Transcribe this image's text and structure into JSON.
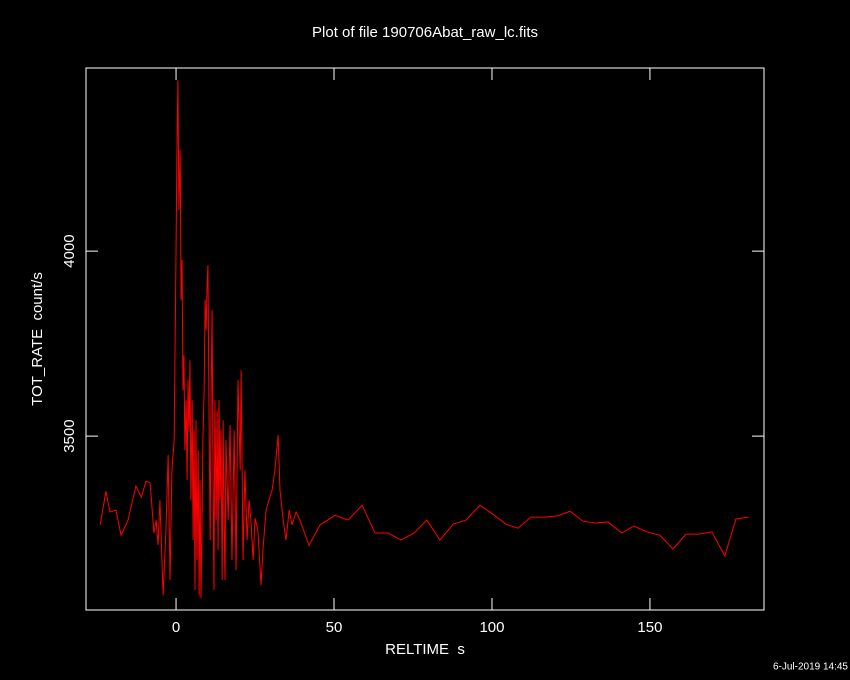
{
  "chart_data": {
    "type": "line",
    "title": "Plot of file 190706Abat_raw_lc.fits",
    "xlabel": "RELTIME  s",
    "ylabel": "TOT_RATE  count/s",
    "timestamp": "6-Jul-2019 14:45",
    "xlim": [
      -28.5,
      186.1
    ],
    "ylim": [
      3030,
      4495
    ],
    "xticks": [
      0,
      50,
      100,
      150
    ],
    "yticks": [
      3500,
      4000
    ],
    "x": [
      -24,
      -22.2,
      -20.9,
      -19,
      -17.4,
      -15.2,
      -12.7,
      -11,
      -9.5,
      -8.2,
      -7,
      -6.3,
      -5.7,
      -5.1,
      -4.1,
      -3.2,
      -2.5,
      -1.9,
      -1.3,
      -0.6,
      0,
      0.3,
      0.6,
      0.9,
      1.3,
      1.6,
      1.9,
      2.2,
      2.5,
      2.8,
      3.2,
      3.5,
      3.8,
      4.1,
      4.4,
      4.7,
      5.1,
      5.4,
      5.7,
      6,
      6.3,
      6.6,
      7,
      7.3,
      7.6,
      7.9,
      8.2,
      8.5,
      8.9,
      9.2,
      9.5,
      9.8,
      10.1,
      10.4,
      10.8,
      11.1,
      11.4,
      11.7,
      12,
      12.3,
      12.7,
      13,
      13.3,
      13.6,
      13.9,
      14.2,
      14.6,
      14.9,
      15.2,
      15.5,
      15.8,
      16.5,
      17.1,
      17.7,
      18.4,
      19,
      19.6,
      20.3,
      20.6,
      21.2,
      21.8,
      22.5,
      23.1,
      23.7,
      24.4,
      25,
      25.9,
      26.9,
      27.5,
      28.5,
      29.4,
      30.4,
      31.3,
      32.3,
      32.9,
      33.9,
      34.8,
      35.8,
      36.7,
      38,
      39.2,
      42.1,
      45.6,
      50.3,
      54.4,
      58.9,
      63,
      67.1,
      71.2,
      75.3,
      79.4,
      83.5,
      87.7,
      91.8,
      96.2,
      100.3,
      104.4,
      108.2,
      112.3,
      116.5,
      120.6,
      124.7,
      128.8,
      132.9,
      136.7,
      141.1,
      144.9,
      149.1,
      153.2,
      157.3,
      161.4,
      165.5,
      169.6,
      173.7,
      177.2,
      181.3
    ],
    "series": [
      {
        "name": "TOT_RATE",
        "color": "#ff0000",
        "values": [
          3260,
          3351,
          3295,
          3300,
          3232,
          3273,
          3365,
          3335,
          3378,
          3373,
          3238,
          3273,
          3205,
          3327,
          3070,
          3246,
          3449,
          3111,
          3408,
          3489,
          4003,
          4286,
          4462,
          4111,
          4273,
          3868,
          3976,
          3624,
          3719,
          3462,
          3597,
          3381,
          3651,
          3516,
          3705,
          3327,
          3597,
          3219,
          3516,
          3084,
          3543,
          3165,
          3462,
          3070,
          3381,
          3062,
          3246,
          3489,
          3624,
          3868,
          3786,
          3895,
          3962,
          3597,
          3219,
          3611,
          3841,
          3408,
          3084,
          3597,
          3273,
          3570,
          3192,
          3597,
          3327,
          3516,
          3111,
          3543,
          3273,
          3111,
          3489,
          3273,
          3530,
          3165,
          3516,
          3138,
          3651,
          3408,
          3678,
          3165,
          3408,
          3219,
          3327,
          3273,
          3165,
          3278,
          3246,
          3097,
          3192,
          3300,
          3327,
          3354,
          3408,
          3503,
          3354,
          3273,
          3219,
          3300,
          3260,
          3295,
          3273,
          3205,
          3260,
          3286,
          3273,
          3313,
          3238,
          3238,
          3219,
          3238,
          3273,
          3219,
          3262,
          3273,
          3313,
          3289,
          3262,
          3251,
          3281,
          3281,
          3284,
          3297,
          3270,
          3265,
          3268,
          3238,
          3257,
          3241,
          3232,
          3195,
          3235,
          3235,
          3241,
          3176,
          3276,
          3281
        ]
      }
    ]
  }
}
